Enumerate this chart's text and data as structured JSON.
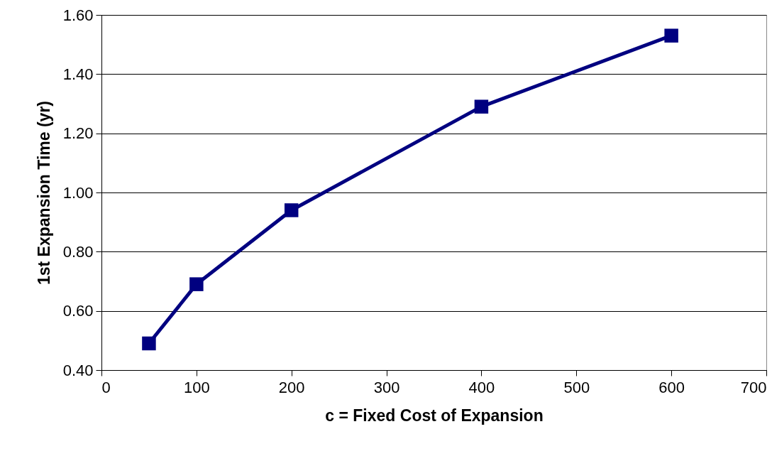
{
  "chart_data": {
    "type": "line",
    "xlabel": "c = Fixed Cost of Expansion",
    "ylabel": "1st Expansion Time (yr)",
    "x": [
      50,
      100,
      200,
      400,
      600
    ],
    "series": [
      {
        "color": "#000080",
        "values": [
          0.49,
          0.69,
          0.94,
          1.29,
          1.53
        ]
      }
    ],
    "xlim": [
      0,
      700
    ],
    "xticks": [
      0,
      100,
      200,
      300,
      400,
      500,
      600,
      700
    ],
    "ylim": [
      0.4,
      1.6
    ],
    "yticks": [
      {
        "value": 0.4,
        "label": "0.40"
      },
      {
        "value": 0.6,
        "label": "0.60"
      },
      {
        "value": 0.8,
        "label": "0.80"
      },
      {
        "value": 1.0,
        "label": "1.00"
      },
      {
        "value": 1.2,
        "label": "1.20"
      },
      {
        "value": 1.4,
        "label": "1.40"
      },
      {
        "value": 1.6,
        "label": "1.60"
      }
    ],
    "grid": "y",
    "marker": "square",
    "line_style": "solid"
  }
}
